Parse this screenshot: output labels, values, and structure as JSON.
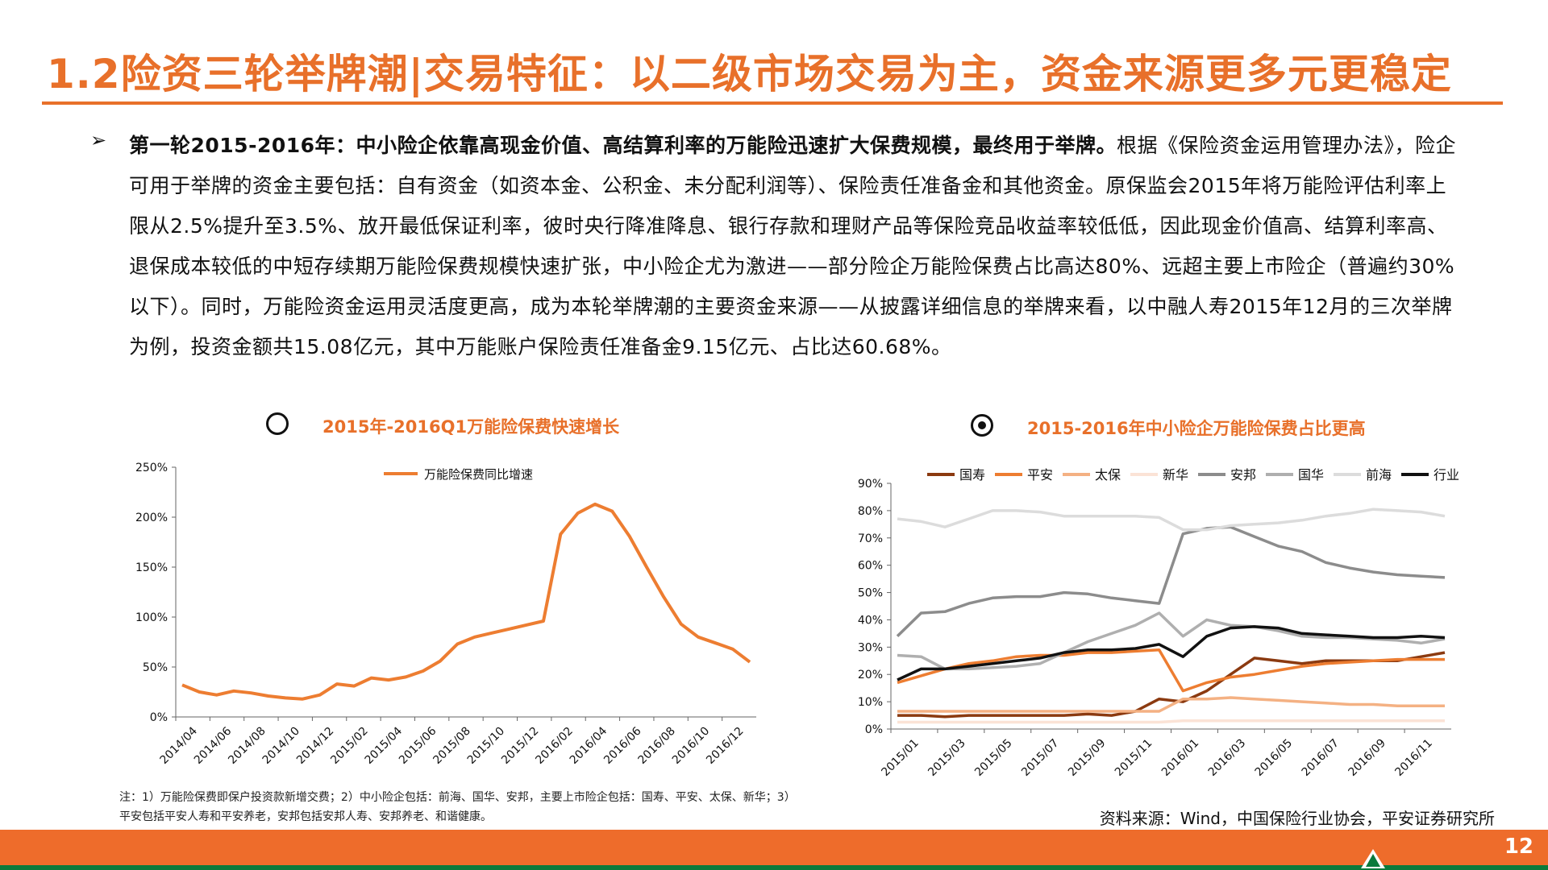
{
  "header": {
    "title": "1.2险资三轮举牌潮|交易特征：以二级市场交易为主，资金来源更多元更稳定"
  },
  "body": {
    "bullet": "➢",
    "bold_lead": "第一轮2015-2016年：中小险企依靠高现金价值、高结算利率的万能险迅速扩大保费规模，最终用于举牌。",
    "text": "根据《保险资金运用管理办法》，险企可用于举牌的资金主要包括：自有资金（如资本金、公积金、未分配利润等）、保险责任准备金和其他资金。原保监会2015年将万能险评估利率上限从2.5%提升至3.5%、放开最低保证利率，彼时央行降准降息、银行存款和理财产品等保险竞品收益率较低低，因此现金价值高、结算利率高、退保成本较低的中短存续期万能险保费规模快速扩张，中小险企尤为激进——部分险企万能险保费占比高达80%、远超主要上市险企（普遍约30%以下）。同时，万能险资金运用灵活度更高，成为本轮举牌潮的主要资金来源——从披露详细信息的举牌来看，以中融人寿2015年12月的三次举牌为例，投资金额共15.08亿元，其中万能账户保险责任准备金9.15亿元、占比达60.68%。"
  },
  "chart1_title": "2015年-2016Q1万能险保费快速增长",
  "chart2_title": "2015-2016年中小险企万能险保费占比更高",
  "chart_data": [
    {
      "type": "line",
      "ylim": [
        0,
        250
      ],
      "yticks": [
        "0%",
        "50%",
        "100%",
        "150%",
        "200%",
        "250%"
      ],
      "xticks": [
        "2014/04",
        "2014/06",
        "2014/08",
        "2014/10",
        "2014/12",
        "2015/02",
        "2015/04",
        "2015/06",
        "2015/08",
        "2015/10",
        "2015/12",
        "2016/02",
        "2016/04",
        "2016/06",
        "2016/08",
        "2016/10",
        "2016/12"
      ],
      "series": [
        {
          "name": "万能险保费同比增速",
          "color": "#ED7D31",
          "values": [
            32,
            25,
            22,
            26,
            24,
            21,
            19,
            18,
            22,
            33,
            31,
            39,
            37,
            40,
            46,
            56,
            73,
            80,
            84,
            88,
            92,
            96,
            183,
            204,
            213,
            206,
            181,
            150,
            120,
            93,
            80,
            74,
            68,
            55
          ]
        }
      ]
    },
    {
      "type": "line",
      "ylim": [
        0,
        90
      ],
      "yticks": [
        "0%",
        "10%",
        "20%",
        "30%",
        "40%",
        "50%",
        "60%",
        "70%",
        "80%",
        "90%"
      ],
      "xticks": [
        "2015/01",
        "2015/03",
        "2015/05",
        "2015/07",
        "2015/09",
        "2015/11",
        "2016/01",
        "2016/03",
        "2016/05",
        "2016/07",
        "2016/09",
        "2016/11"
      ],
      "series": [
        {
          "name": "国寿",
          "color": "#8B3A10",
          "values": [
            5,
            5,
            4.5,
            5,
            5,
            5,
            5,
            5,
            5.5,
            5,
            6.5,
            11,
            10,
            14,
            20,
            26,
            25,
            24,
            25,
            25,
            25,
            25,
            26.5,
            28
          ]
        },
        {
          "name": "平安",
          "color": "#ED7D31",
          "values": [
            17,
            19.5,
            22,
            24,
            25,
            26.5,
            27,
            27,
            28,
            28,
            28.5,
            29,
            14,
            17,
            19,
            20,
            21.5,
            23,
            24,
            24.5,
            25,
            25.5,
            25.5,
            25.5
          ]
        },
        {
          "name": "太保",
          "color": "#F4B183",
          "values": [
            6.5,
            6.5,
            6.5,
            6.5,
            6.5,
            6.5,
            6.5,
            6.5,
            6.5,
            6.5,
            6.5,
            6.5,
            11,
            11,
            11.5,
            11,
            10.5,
            10,
            9.5,
            9,
            9,
            8.5,
            8.5,
            8.5
          ]
        },
        {
          "name": "新华",
          "color": "#FBE3D6",
          "values": [
            2.5,
            2.5,
            2.5,
            2.5,
            2.5,
            2.5,
            2.5,
            2.5,
            2.5,
            2.5,
            2.5,
            2.5,
            3,
            3,
            3,
            3,
            3,
            3,
            3,
            3,
            3,
            3,
            3,
            3
          ]
        },
        {
          "name": "安邦",
          "color": "#8C8C8C",
          "values": [
            34,
            42.5,
            43,
            46,
            48,
            48.5,
            48.5,
            50,
            49.5,
            48,
            47,
            46,
            71.5,
            73.5,
            74,
            70.5,
            67,
            65,
            61,
            59,
            57.5,
            56.5,
            56,
            55.5
          ]
        },
        {
          "name": "国华",
          "color": "#AFAFAF",
          "values": [
            27,
            26.5,
            22,
            22,
            22.5,
            23,
            24,
            28,
            32,
            35,
            38,
            42.5,
            34,
            40,
            38,
            37.5,
            36,
            34,
            33.5,
            33.5,
            33,
            32.5,
            31.5,
            33
          ]
        },
        {
          "name": "前海",
          "color": "#DCDCDC",
          "values": [
            77,
            76,
            74,
            77,
            80,
            80,
            79.5,
            78,
            78,
            78,
            78,
            77.5,
            73,
            73,
            74.5,
            75,
            75.5,
            76.5,
            78,
            79,
            80.5,
            80,
            79.5,
            78
          ]
        },
        {
          "name": "行业",
          "color": "#111111",
          "values": [
            18,
            22,
            22,
            23,
            24,
            25,
            26,
            28,
            29,
            29,
            29.5,
            31,
            26.5,
            34,
            37,
            37.5,
            37,
            35,
            34.5,
            34,
            33.5,
            33.5,
            34,
            33.5
          ]
        }
      ]
    }
  ],
  "footnote": "注：1）万能险保费即保户投资款新增交费；2）中小险企包括：前海、国华、安邦，主要上市险企包括：国寿、平安、太保、新华；3）平安包括平安人寿和平安养老，安邦包括安邦人寿、安邦养老、和谐健康。",
  "source": "资料来源：Wind，中国保险行业协会，平安证券研究所",
  "page_number": "12",
  "colors": {
    "accent": "#E8702A",
    "footer_green": "#0B7A3C"
  }
}
